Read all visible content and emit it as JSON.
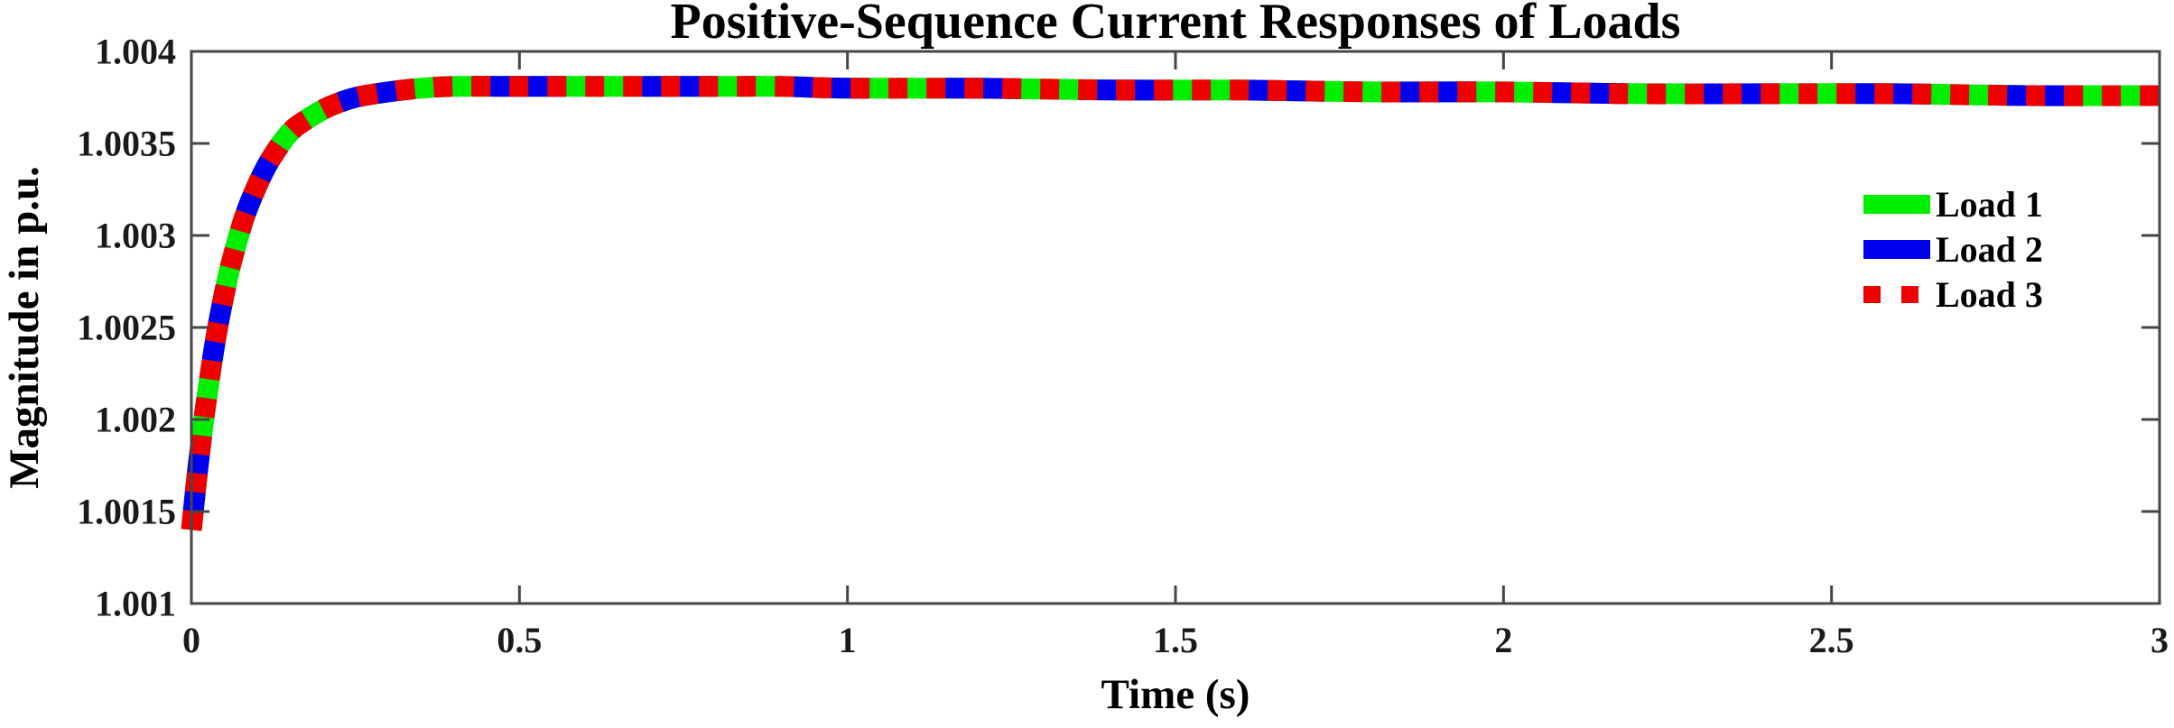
{
  "chart_data": {
    "type": "line",
    "title": "Positive-Sequence Current Responses of Loads",
    "xlabel": "Time (s)",
    "ylabel": "Magnitude in p.u.",
    "xlim": [
      0,
      3
    ],
    "ylim": [
      1.001,
      1.004
    ],
    "grid": false,
    "background": "#ffffff",
    "axis_color": "#464646",
    "x_ticks": {
      "values": [
        0,
        0.5,
        1,
        1.5,
        2,
        2.5,
        3
      ],
      "labels": [
        "0",
        "0.5",
        "1",
        "1.5",
        "2",
        "2.5",
        "3"
      ]
    },
    "y_ticks": {
      "values": [
        1.001,
        1.0015,
        1.002,
        1.0025,
        1.003,
        1.0035,
        1.004
      ],
      "labels": [
        "1.001",
        "1.0015",
        "1.002",
        "1.0025",
        "1.003",
        "1.0035",
        "1.004"
      ]
    },
    "x": [
      0,
      0.01,
      0.02,
      0.03,
      0.04,
      0.05,
      0.06,
      0.08,
      0.1,
      0.12,
      0.15,
      0.18,
      0.21,
      0.25,
      0.3,
      0.35,
      0.4,
      0.5,
      0.6,
      0.7,
      0.8,
      0.9,
      1.0,
      1.2,
      1.4,
      1.6,
      1.8,
      2.0,
      2.2,
      2.4,
      2.6,
      2.8,
      3.0
    ],
    "series": [
      {
        "name": "Load 1",
        "color": "#00ee00",
        "line_style": "solid",
        "values": [
          1.0014,
          1.00174,
          1.00203,
          1.00228,
          1.0025,
          1.00268,
          1.00284,
          1.00309,
          1.00327,
          1.00341,
          1.00356,
          1.00364,
          1.0037,
          1.00375,
          1.00378,
          1.0038,
          1.00381,
          1.00381,
          1.00381,
          1.00381,
          1.00381,
          1.00381,
          1.0038,
          1.0038,
          1.00379,
          1.00379,
          1.00378,
          1.00378,
          1.00377,
          1.00377,
          1.00377,
          1.00376,
          1.00376
        ]
      },
      {
        "name": "Load 2",
        "color": "#0000ee",
        "line_style": "long-dash",
        "values": [
          1.0014,
          1.00174,
          1.00203,
          1.00228,
          1.0025,
          1.00268,
          1.00284,
          1.00309,
          1.00327,
          1.00341,
          1.00356,
          1.00364,
          1.0037,
          1.00375,
          1.00378,
          1.0038,
          1.00381,
          1.00381,
          1.00381,
          1.00381,
          1.00381,
          1.00381,
          1.0038,
          1.0038,
          1.00379,
          1.00379,
          1.00378,
          1.00378,
          1.00377,
          1.00377,
          1.00377,
          1.00376,
          1.00376
        ]
      },
      {
        "name": "Load 3",
        "color": "#ee0000",
        "line_style": "dash",
        "values": [
          1.0014,
          1.00174,
          1.00203,
          1.00228,
          1.0025,
          1.00268,
          1.00284,
          1.00309,
          1.00327,
          1.00341,
          1.00356,
          1.00364,
          1.0037,
          1.00375,
          1.00378,
          1.0038,
          1.00381,
          1.00381,
          1.00381,
          1.00381,
          1.00381,
          1.00381,
          1.0038,
          1.0038,
          1.00379,
          1.00379,
          1.00378,
          1.00378,
          1.00377,
          1.00377,
          1.00377,
          1.00376,
          1.00376
        ]
      }
    ],
    "legend": {
      "position": "upper-right-inside",
      "items": [
        {
          "label": "Load 1",
          "color": "#00ee00",
          "line_style": "solid"
        },
        {
          "label": "Load 2",
          "color": "#0000ee",
          "line_style": "long-dash"
        },
        {
          "label": "Load 3",
          "color": "#ee0000",
          "line_style": "dash"
        }
      ]
    }
  }
}
